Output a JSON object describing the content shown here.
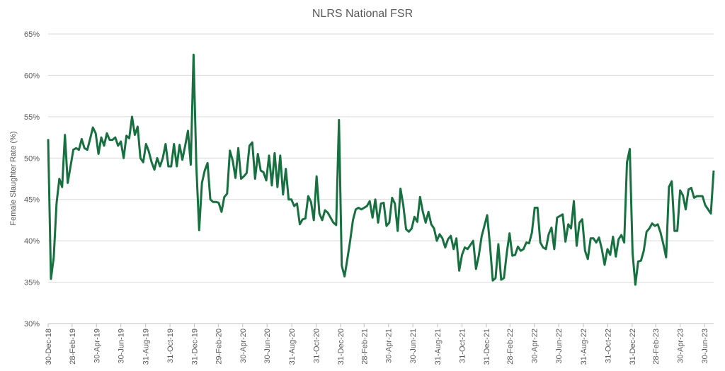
{
  "chart_data": {
    "type": "line",
    "title": "NLRS National FSR",
    "ylabel": "Female Slaughter Rate (%)",
    "color": "#17703f",
    "grid": true,
    "ylim": [
      30,
      65
    ],
    "yticks": [
      {
        "value": 30,
        "label": "30%"
      },
      {
        "value": 35,
        "label": "35%"
      },
      {
        "value": 40,
        "label": "40%"
      },
      {
        "value": 45,
        "label": "45%"
      },
      {
        "value": 50,
        "label": "50%"
      },
      {
        "value": 55,
        "label": "55%"
      },
      {
        "value": 60,
        "label": "60%"
      },
      {
        "value": 65,
        "label": "65%"
      }
    ],
    "xlim": [
      "2018-12-30",
      "2023-07-23"
    ],
    "xticks": [
      {
        "value": "2018-12-30",
        "label": "30-Dec-18"
      },
      {
        "value": "2019-02-28",
        "label": "28-Feb-19"
      },
      {
        "value": "2019-04-30",
        "label": "30-Apr-19"
      },
      {
        "value": "2019-06-30",
        "label": "30-Jun-19"
      },
      {
        "value": "2019-08-31",
        "label": "31-Aug-19"
      },
      {
        "value": "2019-10-31",
        "label": "31-Oct-19"
      },
      {
        "value": "2019-12-31",
        "label": "31-Dec-19"
      },
      {
        "value": "2020-02-29",
        "label": "29-Feb-20"
      },
      {
        "value": "2020-04-30",
        "label": "30-Apr-20"
      },
      {
        "value": "2020-06-30",
        "label": "30-Jun-20"
      },
      {
        "value": "2020-08-31",
        "label": "31-Aug-20"
      },
      {
        "value": "2020-10-31",
        "label": "31-Oct-20"
      },
      {
        "value": "2020-12-31",
        "label": "31-Dec-20"
      },
      {
        "value": "2021-02-28",
        "label": "28-Feb-21"
      },
      {
        "value": "2021-04-30",
        "label": "30-Apr-21"
      },
      {
        "value": "2021-06-30",
        "label": "30-Jun-21"
      },
      {
        "value": "2021-08-31",
        "label": "31-Aug-21"
      },
      {
        "value": "2021-10-31",
        "label": "31-Oct-21"
      },
      {
        "value": "2021-12-31",
        "label": "31-Dec-21"
      },
      {
        "value": "2022-02-28",
        "label": "28-Feb-22"
      },
      {
        "value": "2022-04-30",
        "label": "30-Apr-22"
      },
      {
        "value": "2022-06-30",
        "label": "30-Jun-22"
      },
      {
        "value": "2022-08-31",
        "label": "31-Aug-22"
      },
      {
        "value": "2022-10-31",
        "label": "31-Oct-22"
      },
      {
        "value": "2022-12-31",
        "label": "31-Dec-22"
      },
      {
        "value": "2023-02-28",
        "label": "28-Feb-23"
      },
      {
        "value": "2023-04-30",
        "label": "30-Apr-23"
      },
      {
        "value": "2023-06-30",
        "label": "30-Jun-23"
      }
    ],
    "x": [
      "2018-12-30",
      "2019-01-06",
      "2019-01-13",
      "2019-01-20",
      "2019-01-27",
      "2019-02-03",
      "2019-02-10",
      "2019-02-17",
      "2019-02-24",
      "2019-03-03",
      "2019-03-10",
      "2019-03-17",
      "2019-03-24",
      "2019-03-31",
      "2019-04-07",
      "2019-04-14",
      "2019-04-21",
      "2019-04-28",
      "2019-05-05",
      "2019-05-12",
      "2019-05-19",
      "2019-05-26",
      "2019-06-02",
      "2019-06-09",
      "2019-06-16",
      "2019-06-23",
      "2019-06-30",
      "2019-07-07",
      "2019-07-14",
      "2019-07-21",
      "2019-07-28",
      "2019-08-04",
      "2019-08-11",
      "2019-08-18",
      "2019-08-25",
      "2019-09-01",
      "2019-09-08",
      "2019-09-15",
      "2019-09-22",
      "2019-09-29",
      "2019-10-06",
      "2019-10-13",
      "2019-10-20",
      "2019-10-27",
      "2019-11-03",
      "2019-11-10",
      "2019-11-17",
      "2019-11-24",
      "2019-12-01",
      "2019-12-08",
      "2019-12-15",
      "2019-12-22",
      "2019-12-29",
      "2020-01-05",
      "2020-01-12",
      "2020-01-19",
      "2020-01-26",
      "2020-02-02",
      "2020-02-09",
      "2020-02-16",
      "2020-02-23",
      "2020-03-01",
      "2020-03-08",
      "2020-03-15",
      "2020-03-22",
      "2020-03-29",
      "2020-04-05",
      "2020-04-12",
      "2020-04-19",
      "2020-04-26",
      "2020-05-03",
      "2020-05-10",
      "2020-05-17",
      "2020-05-24",
      "2020-05-31",
      "2020-06-07",
      "2020-06-14",
      "2020-06-21",
      "2020-06-28",
      "2020-07-05",
      "2020-07-12",
      "2020-07-19",
      "2020-07-26",
      "2020-08-02",
      "2020-08-09",
      "2020-08-16",
      "2020-08-23",
      "2020-08-30",
      "2020-09-06",
      "2020-09-13",
      "2020-09-20",
      "2020-09-27",
      "2020-10-04",
      "2020-10-11",
      "2020-10-18",
      "2020-10-25",
      "2020-11-01",
      "2020-11-08",
      "2020-11-15",
      "2020-11-22",
      "2020-11-29",
      "2020-12-06",
      "2020-12-13",
      "2020-12-20",
      "2020-12-27",
      "2021-01-03",
      "2021-01-10",
      "2021-01-17",
      "2021-01-24",
      "2021-01-31",
      "2021-02-07",
      "2021-02-14",
      "2021-02-21",
      "2021-02-28",
      "2021-03-07",
      "2021-03-14",
      "2021-03-21",
      "2021-03-28",
      "2021-04-04",
      "2021-04-11",
      "2021-04-18",
      "2021-04-25",
      "2021-05-02",
      "2021-05-09",
      "2021-05-16",
      "2021-05-23",
      "2021-05-30",
      "2021-06-06",
      "2021-06-13",
      "2021-06-20",
      "2021-06-27",
      "2021-07-04",
      "2021-07-11",
      "2021-07-18",
      "2021-07-25",
      "2021-08-01",
      "2021-08-08",
      "2021-08-15",
      "2021-08-22",
      "2021-08-29",
      "2021-09-05",
      "2021-09-12",
      "2021-09-19",
      "2021-09-26",
      "2021-10-03",
      "2021-10-10",
      "2021-10-17",
      "2021-10-24",
      "2021-10-31",
      "2021-11-07",
      "2021-11-14",
      "2021-11-21",
      "2021-11-28",
      "2021-12-05",
      "2021-12-12",
      "2021-12-19",
      "2021-12-26",
      "2022-01-02",
      "2022-01-09",
      "2022-01-16",
      "2022-01-23",
      "2022-01-30",
      "2022-02-06",
      "2022-02-13",
      "2022-02-20",
      "2022-02-27",
      "2022-03-06",
      "2022-03-13",
      "2022-03-20",
      "2022-03-27",
      "2022-04-03",
      "2022-04-10",
      "2022-04-17",
      "2022-04-24",
      "2022-05-01",
      "2022-05-08",
      "2022-05-15",
      "2022-05-22",
      "2022-05-29",
      "2022-06-05",
      "2022-06-12",
      "2022-06-19",
      "2022-06-26",
      "2022-07-03",
      "2022-07-10",
      "2022-07-17",
      "2022-07-24",
      "2022-07-31",
      "2022-08-07",
      "2022-08-14",
      "2022-08-21",
      "2022-08-28",
      "2022-09-04",
      "2022-09-11",
      "2022-09-18",
      "2022-09-25",
      "2022-10-02",
      "2022-10-09",
      "2022-10-16",
      "2022-10-23",
      "2022-10-30",
      "2022-11-06",
      "2022-11-13",
      "2022-11-20",
      "2022-11-27",
      "2022-12-04",
      "2022-12-11",
      "2022-12-18",
      "2022-12-25",
      "2023-01-01",
      "2023-01-08",
      "2023-01-15",
      "2023-01-22",
      "2023-01-29",
      "2023-02-05",
      "2023-02-12",
      "2023-02-19",
      "2023-02-26",
      "2023-03-05",
      "2023-03-12",
      "2023-03-19",
      "2023-03-26",
      "2023-04-02",
      "2023-04-09",
      "2023-04-16",
      "2023-04-23",
      "2023-04-30",
      "2023-05-07",
      "2023-05-14",
      "2023-05-21",
      "2023-05-28",
      "2023-06-04",
      "2023-06-11",
      "2023-06-18",
      "2023-06-25",
      "2023-07-02",
      "2023-07-09",
      "2023-07-16",
      "2023-07-23"
    ],
    "values": [
      52.3,
      35.4,
      38,
      44.5,
      47.5,
      46.5,
      52.8,
      47,
      49,
      51,
      51.2,
      51,
      52.3,
      51.2,
      51,
      52.3,
      53.7,
      53,
      50.5,
      52.5,
      51.5,
      53,
      52.2,
      52.2,
      52.5,
      51.5,
      52,
      50,
      52.7,
      52.4,
      55,
      52.8,
      53.8,
      50,
      49.5,
      51.7,
      50.8,
      49.5,
      48.6,
      50,
      49,
      50,
      51.7,
      49,
      49,
      51.7,
      49,
      51.6,
      49.8,
      51.5,
      53.3,
      49.2,
      62.5,
      49,
      41.3,
      47,
      48.5,
      49.4,
      45,
      44.7,
      44.7,
      44.6,
      43.5,
      45.3,
      45.7,
      50.9,
      49.7,
      47.6,
      51.2,
      47.5,
      47.8,
      48.2,
      51.5,
      51.9,
      47.5,
      50.5,
      48.5,
      48.3,
      47.3,
      50.3,
      46.7,
      50.6,
      46.5,
      50.3,
      45.6,
      48.7,
      45,
      45,
      44.2,
      44.5,
      42,
      42.6,
      42.7,
      45.4,
      44.7,
      42.5,
      47.8,
      43.3,
      42.5,
      43.7,
      43.4,
      42.8,
      42.2,
      41.9,
      54.6,
      37,
      35.7,
      37.8,
      40,
      42.5,
      43.8,
      44,
      43.8,
      44,
      44.2,
      44.8,
      42.8,
      45,
      42.2,
      44.5,
      44.6,
      41.8,
      42.2,
      45.2,
      44.5,
      41.2,
      46.3,
      44.3,
      41.4,
      41.1,
      41.5,
      42.9,
      42.3,
      45.3,
      43.5,
      42.2,
      43.5,
      42,
      41.5,
      40,
      40.8,
      40.3,
      39.2,
      40.2,
      40.6,
      39,
      40.3,
      36.4,
      38.3,
      39.2,
      39,
      39.5,
      40,
      36.6,
      38.2,
      40.5,
      41.8,
      43.1,
      39.5,
      35.2,
      35.5,
      39.6,
      35.3,
      35.5,
      38.5,
      40.9,
      38.2,
      38.3,
      39.3,
      38.8,
      39,
      39.8,
      39.7,
      41,
      44,
      44,
      39.8,
      39.2,
      39,
      40.8,
      41.6,
      39,
      42.8,
      43,
      43.2,
      39.9,
      42,
      41.5,
      44.8,
      39.4,
      42.2,
      42.6,
      38.8,
      37.8,
      40.3,
      40.3,
      39.8,
      40.4,
      39,
      37.1,
      39,
      38.3,
      40.5,
      38.1,
      40.2,
      40.7,
      39.8,
      49.5,
      51.1,
      38.5,
      34.7,
      37.5,
      37.6,
      38.8,
      41.1,
      41.5,
      42.1,
      41.8,
      42,
      41,
      39.6,
      38,
      46.5,
      47.2,
      41.2,
      41.2,
      46.1,
      45.5,
      43.8,
      46.2,
      46.4,
      45.2,
      45.4,
      45.4,
      45.4,
      44.3,
      43.8,
      43.3,
      48.5
    ]
  }
}
